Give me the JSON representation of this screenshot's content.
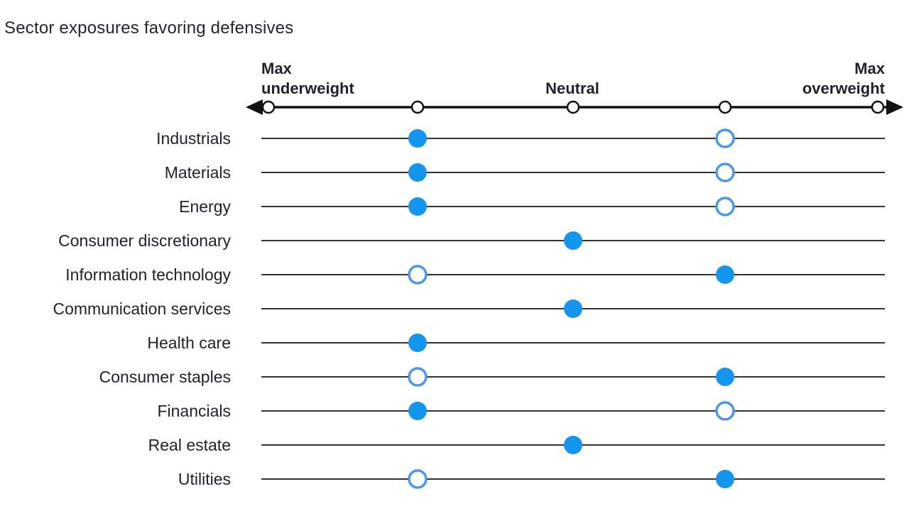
{
  "title": "Sector exposures favoring defensives",
  "axis": {
    "left_label": "Max\nunderweight",
    "center_label": "Neutral",
    "right_label": "Max\noverweight"
  },
  "colors": {
    "dot_fill": "#1496ee",
    "dot_ring": "#4a97eb",
    "row_line": "#333333",
    "axis_line": "#121212",
    "tick_fill": "#ffffff",
    "text": "#1e222a"
  },
  "chart_data": {
    "type": "scatter",
    "title": "Sector exposures favoring defensives",
    "x_scale": {
      "min": -2,
      "max": 2,
      "ticks": [
        -2,
        -1,
        0,
        1,
        2
      ],
      "tick_labels": [
        "Max underweight",
        "",
        "Neutral",
        "",
        "Max overweight"
      ]
    },
    "marker_styles": [
      "filled",
      "open"
    ],
    "rows": [
      {
        "label": "Industrials",
        "filled": -1,
        "open": 1
      },
      {
        "label": "Materials",
        "filled": -1,
        "open": 1
      },
      {
        "label": "Energy",
        "filled": -1,
        "open": 1
      },
      {
        "label": "Consumer discretionary",
        "filled": 0,
        "open": null
      },
      {
        "label": "Information technology",
        "filled": 1,
        "open": -1
      },
      {
        "label": "Communication services",
        "filled": 0,
        "open": null
      },
      {
        "label": "Health care",
        "filled": -1,
        "open": null
      },
      {
        "label": "Consumer staples",
        "filled": 1,
        "open": -1
      },
      {
        "label": "Financials",
        "filled": -1,
        "open": 1
      },
      {
        "label": "Real estate",
        "filled": 0,
        "open": null
      },
      {
        "label": "Utilities",
        "filled": 1,
        "open": -1
      }
    ]
  }
}
